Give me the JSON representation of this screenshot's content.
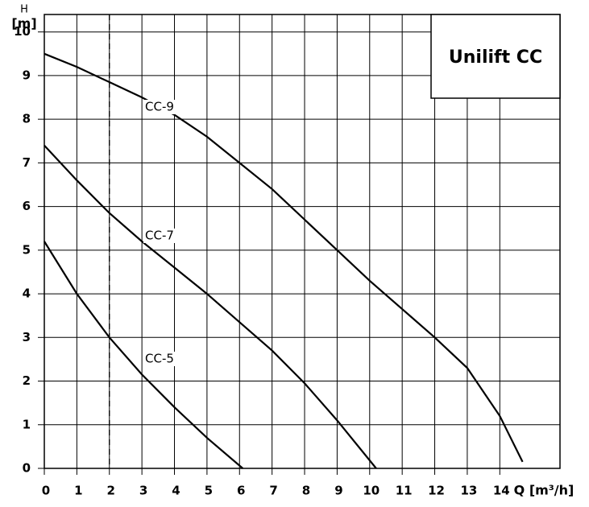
{
  "chart_data": {
    "type": "line",
    "title": "Unilift CC",
    "ylabel_symbol": "H",
    "ylabel_unit": "[m]",
    "xlabel": "Q [m³/h]",
    "xlim": [
      0,
      15.85
    ],
    "ylim": [
      0,
      10.4
    ],
    "xticks": [
      0,
      1,
      2,
      3,
      4,
      5,
      6,
      7,
      8,
      9,
      10,
      11,
      12,
      13,
      14
    ],
    "yticks": [
      0,
      1,
      2,
      3,
      4,
      5,
      6,
      7,
      8,
      9,
      10
    ],
    "grid": true,
    "reference_x": 2,
    "series": [
      {
        "name": "CC-9",
        "color": "#000000",
        "x": [
          0,
          1,
          2,
          3,
          4,
          5,
          6,
          7,
          8,
          9,
          10,
          11,
          12,
          13,
          14,
          14.7
        ],
        "values": [
          9.5,
          9.2,
          8.85,
          8.5,
          8.1,
          7.6,
          7.0,
          6.4,
          5.7,
          5.0,
          4.3,
          3.65,
          3.0,
          2.3,
          1.2,
          0.15
        ]
      },
      {
        "name": "CC-7",
        "color": "#000000",
        "x": [
          0,
          1,
          2,
          3,
          4,
          5,
          6,
          7,
          8,
          9,
          10.2
        ],
        "values": [
          7.4,
          6.6,
          5.85,
          5.2,
          4.6,
          4.0,
          3.35,
          2.7,
          1.95,
          1.1,
          0
        ]
      },
      {
        "name": "CC-5",
        "color": "#000000",
        "x": [
          0,
          1,
          2,
          3,
          4,
          5,
          6.1
        ],
        "values": [
          5.2,
          4.0,
          3.0,
          2.15,
          1.4,
          0.7,
          0
        ]
      }
    ]
  }
}
